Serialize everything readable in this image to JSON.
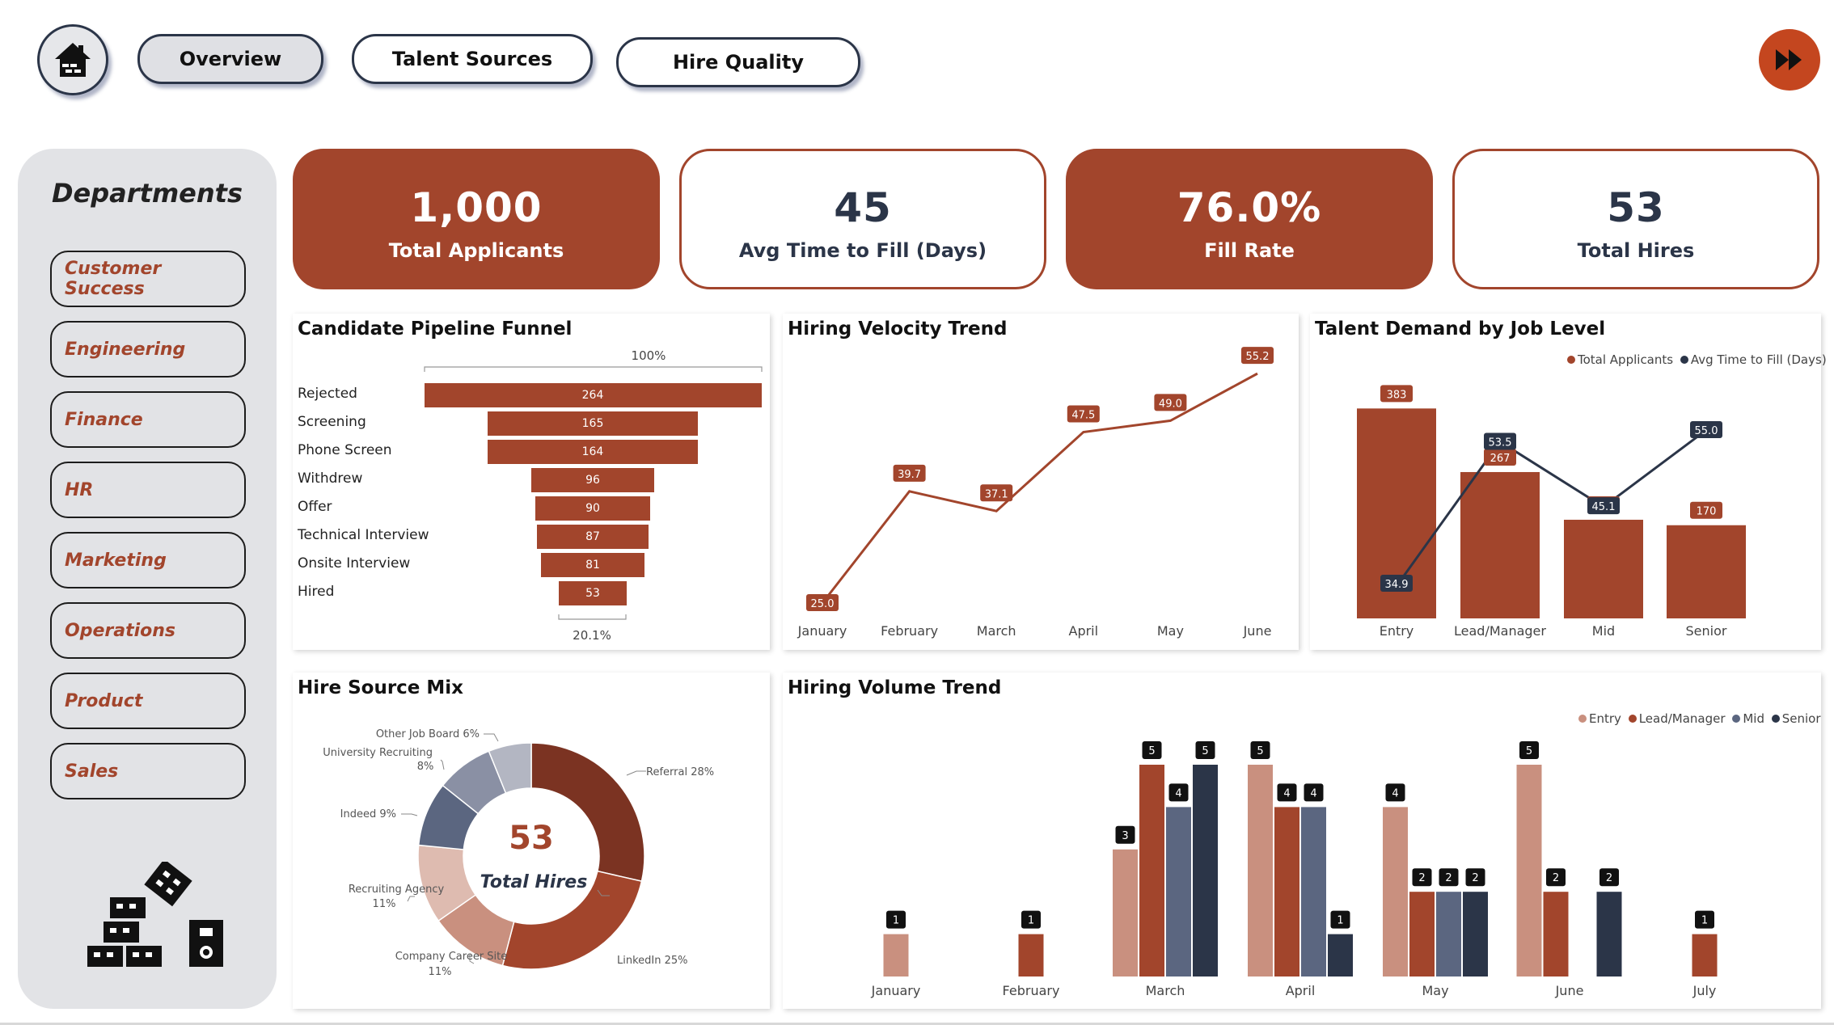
{
  "nav": {
    "overview": "Overview",
    "talent_sources": "Talent Sources",
    "hire_quality": "Hire Quality"
  },
  "sidebar": {
    "title": "Departments",
    "items": [
      "Customer Success",
      "Engineering",
      "Finance",
      "HR",
      "Marketing",
      "Operations",
      "Product",
      "Sales"
    ]
  },
  "kpis": [
    {
      "value": "1,000",
      "label": "Total Applicants"
    },
    {
      "value": "45",
      "label": "Avg Time to Fill (Days)"
    },
    {
      "value": "76.0%",
      "label": "Fill Rate"
    },
    {
      "value": "53",
      "label": "Total Hires"
    }
  ],
  "colors": {
    "accent": "#a2452c",
    "navy": "#2b3548",
    "entry": "#c9907f",
    "lead": "#a2452c",
    "mid": "#5b6680",
    "senior": "#2b3548"
  },
  "funnel": {
    "title": "Candidate Pipeline Funnel",
    "top_pct": "100%",
    "bottom_pct": "20.1%",
    "stages": [
      {
        "label": "Rejected",
        "value": 264
      },
      {
        "label": "Screening",
        "value": 165
      },
      {
        "label": "Phone Screen",
        "value": 164
      },
      {
        "label": "Withdrew",
        "value": 96
      },
      {
        "label": "Offer",
        "value": 90
      },
      {
        "label": "Technical Interview",
        "value": 87
      },
      {
        "label": "Onsite Interview",
        "value": 81
      },
      {
        "label": "Hired",
        "value": 53
      }
    ]
  },
  "velocity": {
    "title": "Hiring Velocity Trend",
    "chart_data": {
      "type": "line",
      "categories": [
        "January",
        "February",
        "March",
        "April",
        "May",
        "June"
      ],
      "values": [
        25.0,
        39.7,
        37.1,
        47.5,
        49.0,
        55.2
      ]
    }
  },
  "demand": {
    "title": "Talent Demand by Job Level",
    "legend": [
      "Total Applicants",
      "Avg Time to Fill (Days)"
    ],
    "chart_data": {
      "type": "bar",
      "categories": [
        "Entry",
        "Lead/Manager",
        "Mid",
        "Senior"
      ],
      "series": [
        {
          "name": "Total Applicants",
          "values": [
            383,
            267,
            180,
            170
          ]
        },
        {
          "name": "Avg Time to Fill (Days)",
          "values": [
            34.9,
            53.5,
            45.1,
            55.0
          ]
        }
      ]
    }
  },
  "sourcemix": {
    "title": "Hire Source Mix",
    "center_value": "53",
    "center_label": "Total Hires",
    "chart_data": {
      "type": "pie",
      "slices": [
        {
          "label": "Referral",
          "pct": 28,
          "color": "#7b3322"
        },
        {
          "label": "LinkedIn",
          "pct": 25,
          "color": "#a2452c"
        },
        {
          "label": "Company Career Site",
          "pct": 11,
          "color": "#c9907f"
        },
        {
          "label": "Recruiting Agency",
          "pct": 11,
          "color": "#debbb0"
        },
        {
          "label": "Indeed",
          "pct": 9,
          "color": "#5b6680"
        },
        {
          "label": "University Recruiting",
          "pct": 8,
          "color": "#8a90a4"
        },
        {
          "label": "Other Job Board",
          "pct": 6,
          "color": "#b3b6c2"
        }
      ]
    },
    "labels": {
      "referral": "Referral 28%",
      "linkedin": "LinkedIn 25%",
      "career_1": "Company Career Site",
      "career_2": "11%",
      "agency_1": "Recruiting Agency",
      "agency_2": "11%",
      "indeed": "Indeed 9%",
      "univ_1": "University Recruiting",
      "univ_2": "8%",
      "other": "Other Job Board 6%"
    }
  },
  "volume": {
    "title": "Hiring Volume Trend",
    "legend": [
      "Entry",
      "Lead/Manager",
      "Mid",
      "Senior"
    ],
    "chart_data": {
      "type": "bar",
      "categories": [
        "January",
        "February",
        "March",
        "April",
        "May",
        "June",
        "July"
      ],
      "series": [
        {
          "name": "Entry",
          "values": [
            1,
            null,
            3,
            5,
            4,
            5,
            null
          ]
        },
        {
          "name": "Lead/Manager",
          "values": [
            null,
            1,
            5,
            4,
            2,
            2,
            1
          ]
        },
        {
          "name": "Mid",
          "values": [
            null,
            null,
            4,
            4,
            2,
            null,
            null
          ]
        },
        {
          "name": "Senior",
          "values": [
            null,
            null,
            5,
            1,
            2,
            2,
            null
          ]
        }
      ]
    }
  }
}
